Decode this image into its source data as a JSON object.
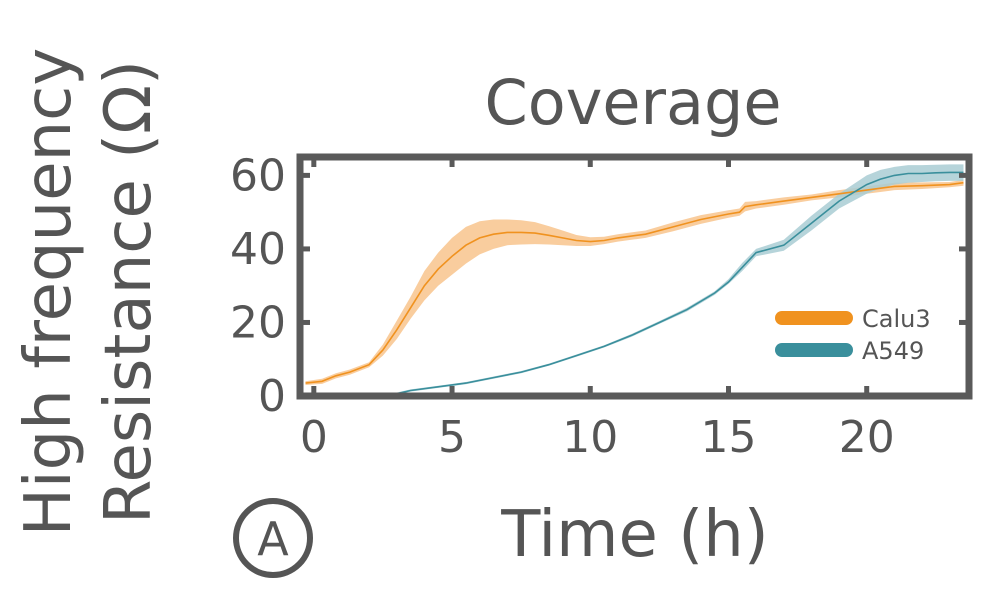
{
  "chart_data": {
    "type": "line",
    "title": "Coverage",
    "xlabel": "Time (h)",
    "ylabel_line1": "High frequency",
    "ylabel_line2": "Resistance (Ω)",
    "panel_label": "A",
    "xlim": [
      -0.5,
      23.7
    ],
    "ylim": [
      0,
      65
    ],
    "xticks": [
      0,
      5,
      10,
      15,
      20
    ],
    "yticks": [
      0,
      20,
      40,
      60
    ],
    "grid": false,
    "legend_position": "lower-right",
    "series": [
      {
        "name": "Calu3",
        "color": "#f0921f",
        "band_color": "#f8c48d",
        "x": [
          -0.3,
          0.3,
          0.8,
          1.3,
          2.0,
          2.5,
          3.0,
          3.5,
          4.0,
          4.5,
          5.0,
          5.5,
          6.0,
          6.5,
          7.0,
          7.5,
          8.0,
          8.5,
          9.0,
          9.5,
          10.0,
          10.5,
          11.0,
          12.0,
          13.0,
          14.0,
          15.0,
          15.4,
          15.6,
          16.0,
          17.0,
          18.0,
          19.0,
          20.0,
          21.0,
          22.0,
          23.0,
          23.5
        ],
        "y": [
          3.5,
          4.0,
          5.5,
          6.5,
          8.5,
          12.5,
          18.0,
          24.0,
          30.0,
          34.5,
          38.0,
          41.0,
          43.0,
          44.0,
          44.5,
          44.5,
          44.3,
          43.7,
          43.0,
          42.3,
          42.0,
          42.3,
          43.0,
          44.0,
          46.0,
          48.0,
          49.5,
          50.0,
          51.5,
          52.0,
          53.0,
          54.0,
          55.0,
          56.0,
          57.0,
          57.2,
          57.5,
          58.0
        ],
        "y_lower": [
          3.0,
          3.3,
          4.8,
          5.8,
          7.8,
          11.0,
          15.5,
          21.0,
          26.0,
          30.0,
          33.0,
          36.0,
          38.5,
          40.0,
          41.0,
          41.2,
          41.3,
          41.2,
          41.0,
          40.8,
          40.8,
          41.3,
          42.0,
          43.0,
          44.8,
          46.8,
          48.5,
          49.0,
          50.2,
          51.0,
          52.0,
          53.2,
          54.0,
          55.0,
          56.0,
          56.3,
          56.8,
          57.2
        ],
        "y_upper": [
          4.0,
          4.7,
          6.2,
          7.2,
          9.2,
          14.0,
          20.5,
          27.0,
          34.0,
          39.0,
          43.0,
          46.0,
          47.5,
          48.0,
          48.0,
          47.8,
          47.3,
          46.2,
          45.0,
          43.8,
          43.2,
          43.3,
          44.0,
          45.0,
          47.2,
          49.2,
          50.5,
          51.0,
          52.8,
          53.0,
          54.0,
          54.8,
          56.0,
          57.0,
          58.0,
          58.1,
          58.2,
          58.8
        ]
      },
      {
        "name": "A549",
        "color": "#3a8f9c",
        "band_color": "#a9cdd3",
        "x": [
          -0.3,
          1.0,
          2.0,
          2.8,
          3.5,
          4.5,
          5.5,
          6.5,
          7.5,
          8.5,
          9.5,
          10.5,
          11.5,
          12.5,
          13.5,
          14.5,
          15.0,
          15.5,
          16.0,
          17.0,
          18.0,
          19.0,
          20.0,
          20.5,
          21.0,
          21.5,
          22.0,
          22.5,
          23.0,
          23.5
        ],
        "y": [
          0.0,
          0.3,
          0.3,
          0.3,
          1.5,
          2.5,
          3.5,
          5.0,
          6.5,
          8.5,
          11.0,
          13.5,
          16.5,
          20.0,
          23.5,
          28.0,
          31.0,
          35.0,
          39.0,
          41.0,
          47.0,
          53.0,
          57.5,
          59.0,
          60.0,
          60.5,
          60.5,
          60.7,
          60.8,
          60.8
        ],
        "y_lower": [
          0.0,
          0.2,
          0.2,
          0.0,
          1.2,
          2.2,
          3.2,
          4.7,
          6.2,
          8.2,
          10.7,
          13.2,
          16.1,
          19.6,
          23.0,
          27.5,
          30.5,
          34.0,
          38.0,
          39.5,
          45.0,
          51.0,
          55.0,
          56.5,
          57.5,
          58.0,
          58.2,
          58.4,
          58.5,
          58.5
        ],
        "y_upper": [
          0.2,
          0.5,
          0.5,
          0.6,
          1.8,
          2.8,
          3.8,
          5.3,
          6.8,
          8.8,
          11.3,
          13.8,
          16.9,
          20.4,
          24.0,
          28.5,
          31.8,
          36.2,
          40.0,
          42.5,
          49.0,
          55.0,
          60.0,
          61.5,
          62.3,
          62.8,
          62.8,
          62.9,
          63.0,
          63.0
        ]
      }
    ]
  }
}
